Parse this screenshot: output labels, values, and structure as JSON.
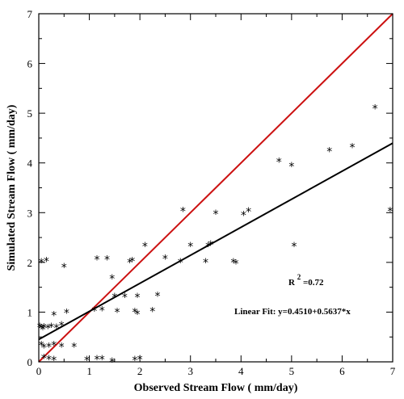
{
  "chart_data": {
    "type": "scatter",
    "xlabel": "Observed Stream Flow ( mm/day)",
    "ylabel": "Simulated Stream Flow ( mm/day)",
    "xlim": [
      0,
      7
    ],
    "ylim": [
      0,
      7
    ],
    "xticks": [
      "0",
      "1",
      "2",
      "3",
      "4",
      "5",
      "6",
      "7"
    ],
    "yticks": [
      "0",
      "1",
      "2",
      "3",
      "4",
      "5",
      "6",
      "7"
    ],
    "grid": false,
    "marker_glyph": "*",
    "points": [
      [
        0.02,
        0.75
      ],
      [
        0.05,
        0.72
      ],
      [
        0.08,
        0.7
      ],
      [
        0.1,
        0.74
      ],
      [
        0.18,
        0.72
      ],
      [
        0.25,
        0.75
      ],
      [
        0.35,
        0.73
      ],
      [
        0.45,
        0.78
      ],
      [
        0.05,
        2.05
      ],
      [
        0.15,
        2.07
      ],
      [
        0.5,
        1.95
      ],
      [
        0.05,
        0.38
      ],
      [
        0.1,
        0.33
      ],
      [
        0.2,
        0.35
      ],
      [
        0.3,
        0.38
      ],
      [
        0.45,
        0.35
      ],
      [
        0.7,
        0.35
      ],
      [
        0.1,
        0.12
      ],
      [
        0.2,
        0.1
      ],
      [
        0.3,
        0.08
      ],
      [
        0.3,
        0.98
      ],
      [
        0.55,
        1.03
      ],
      [
        0.95,
        0.08
      ],
      [
        1.15,
        0.1
      ],
      [
        1.25,
        0.1
      ],
      [
        1.45,
        0.05
      ],
      [
        1.9,
        0.08
      ],
      [
        2.0,
        0.1
      ],
      [
        1.1,
        1.07
      ],
      [
        1.25,
        1.08
      ],
      [
        1.55,
        1.05
      ],
      [
        1.9,
        1.05
      ],
      [
        2.25,
        1.06
      ],
      [
        1.95,
        1.01
      ],
      [
        1.5,
        1.35
      ],
      [
        1.7,
        1.35
      ],
      [
        1.95,
        1.35
      ],
      [
        2.35,
        1.37
      ],
      [
        1.45,
        1.72
      ],
      [
        1.15,
        2.1
      ],
      [
        1.35,
        2.1
      ],
      [
        1.8,
        2.05
      ],
      [
        1.85,
        2.07
      ],
      [
        2.1,
        2.37
      ],
      [
        2.5,
        2.12
      ],
      [
        2.8,
        2.05
      ],
      [
        2.85,
        3.08
      ],
      [
        3.0,
        2.37
      ],
      [
        3.3,
        2.05
      ],
      [
        3.35,
        2.37
      ],
      [
        3.4,
        2.4
      ],
      [
        3.5,
        3.02
      ],
      [
        3.85,
        2.05
      ],
      [
        3.9,
        2.02
      ],
      [
        4.05,
        3.0
      ],
      [
        4.15,
        3.07
      ],
      [
        4.75,
        4.07
      ],
      [
        5.0,
        3.98
      ],
      [
        5.05,
        2.37
      ],
      [
        5.75,
        4.28
      ],
      [
        6.2,
        4.36
      ],
      [
        6.65,
        5.14
      ],
      [
        6.95,
        3.08
      ]
    ],
    "series": [
      {
        "name": "",
        "type": "line",
        "color": "#cc1111",
        "x": [
          0,
          7
        ],
        "y": [
          0,
          7
        ]
      },
      {
        "name": "",
        "type": "line",
        "color": "#000000",
        "x": [
          0,
          7
        ],
        "y": [
          0.451,
          4.397
        ]
      }
    ],
    "annotations": {
      "r2_label": "R",
      "r2_sup": "2",
      "r2_value": " =0.72",
      "fit_label": "Linear Fit: y=0.4510+0.5637*x"
    }
  }
}
